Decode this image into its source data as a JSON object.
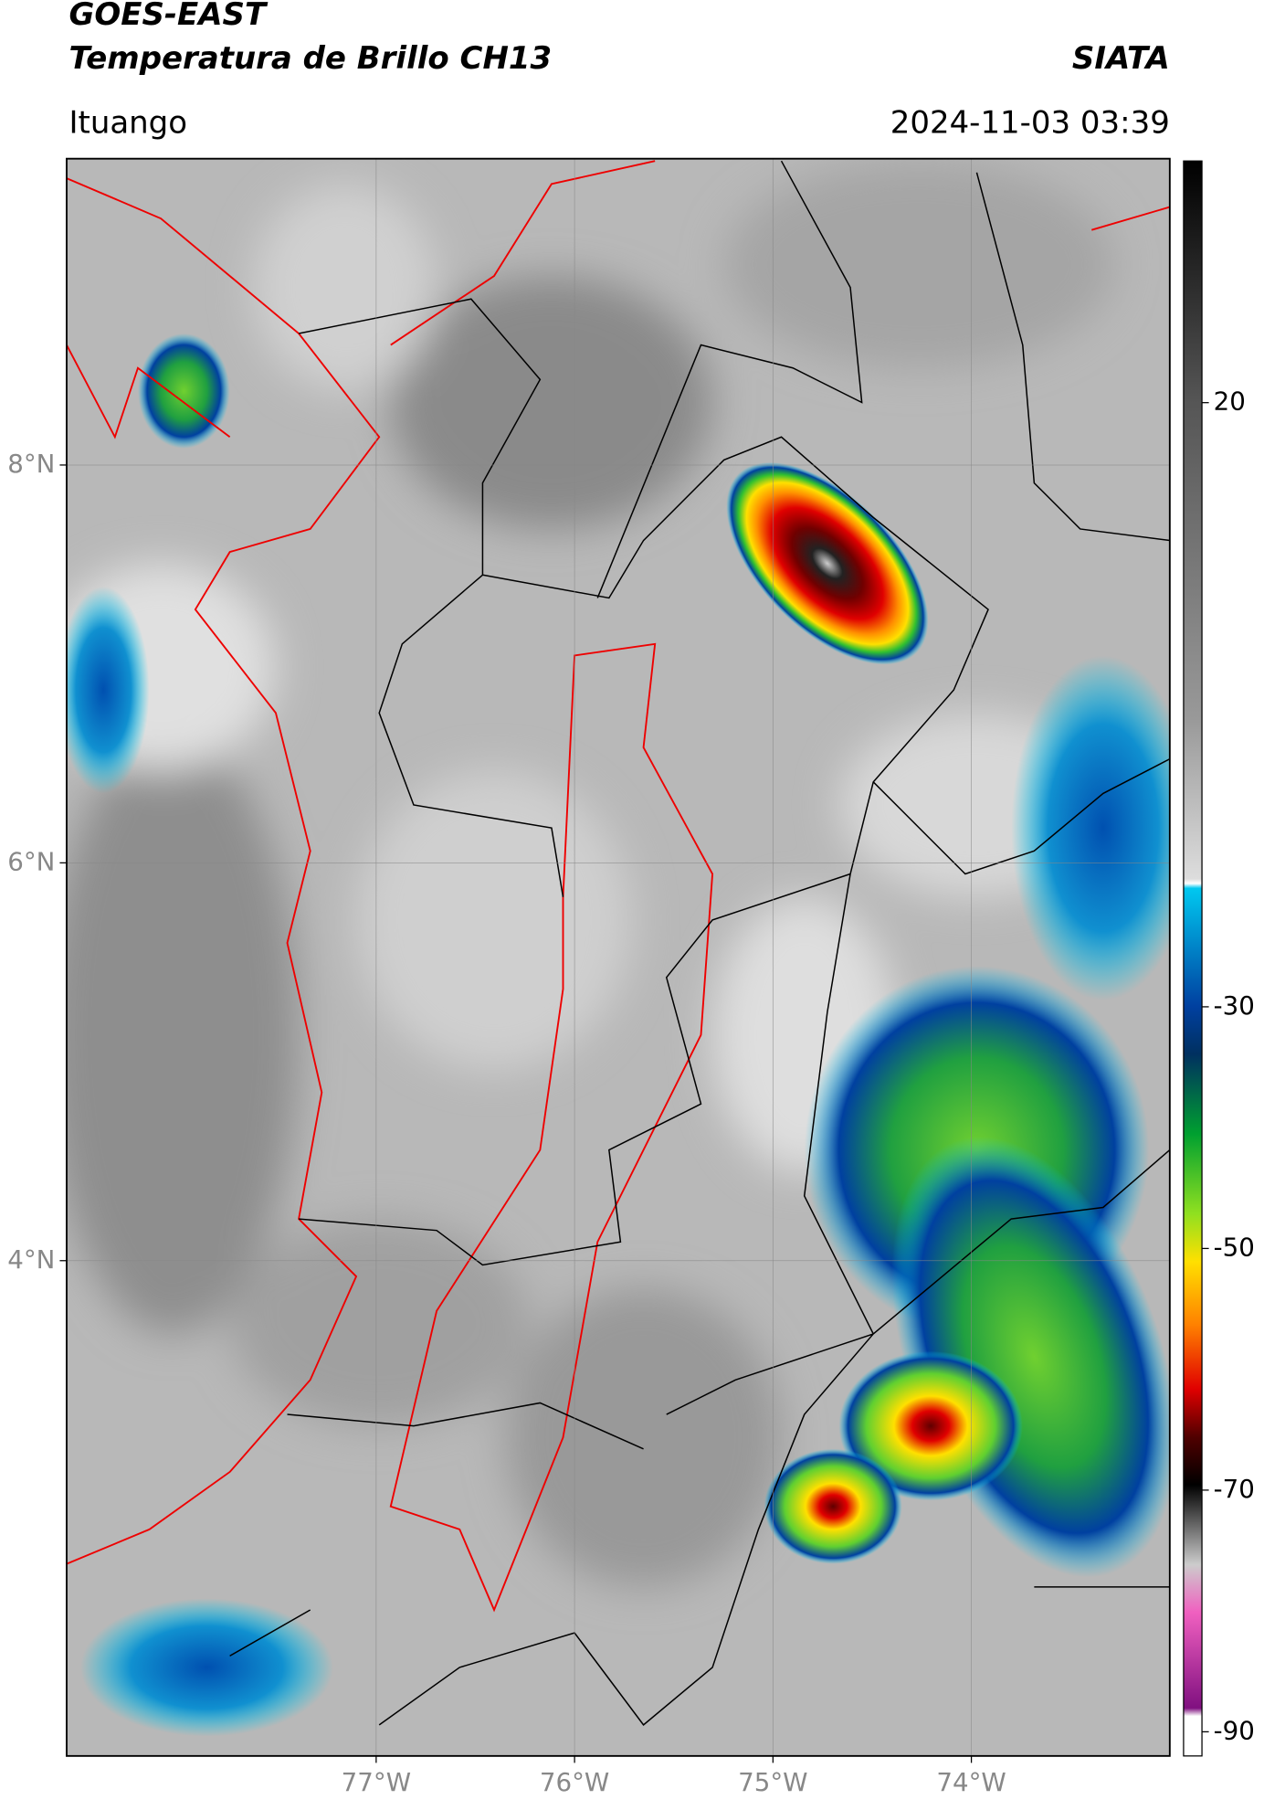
{
  "header": {
    "title": "GOES-EAST",
    "subtitle": "Temperatura de Brillo CH13",
    "source": "SIATA",
    "location": "Ituango",
    "datetime": "2024-11-03 03:39"
  },
  "map": {
    "lon_range": [
      -78.56,
      -73.0
    ],
    "lat_range": [
      1.51,
      9.54
    ],
    "lon_ticks": [
      {
        "value": -77,
        "label": "77°W"
      },
      {
        "value": -76,
        "label": "76°W"
      },
      {
        "value": -75,
        "label": "75°W"
      },
      {
        "value": -74,
        "label": "74°W"
      }
    ],
    "lat_ticks": [
      {
        "value": 8,
        "label": "8°N"
      },
      {
        "value": 6,
        "label": "6°N"
      },
      {
        "value": 4,
        "label": "4°N"
      }
    ]
  },
  "colorbar": {
    "range": [
      -92,
      40
    ],
    "ticks": [
      20,
      -30,
      -50,
      -70,
      -90
    ]
  }
}
